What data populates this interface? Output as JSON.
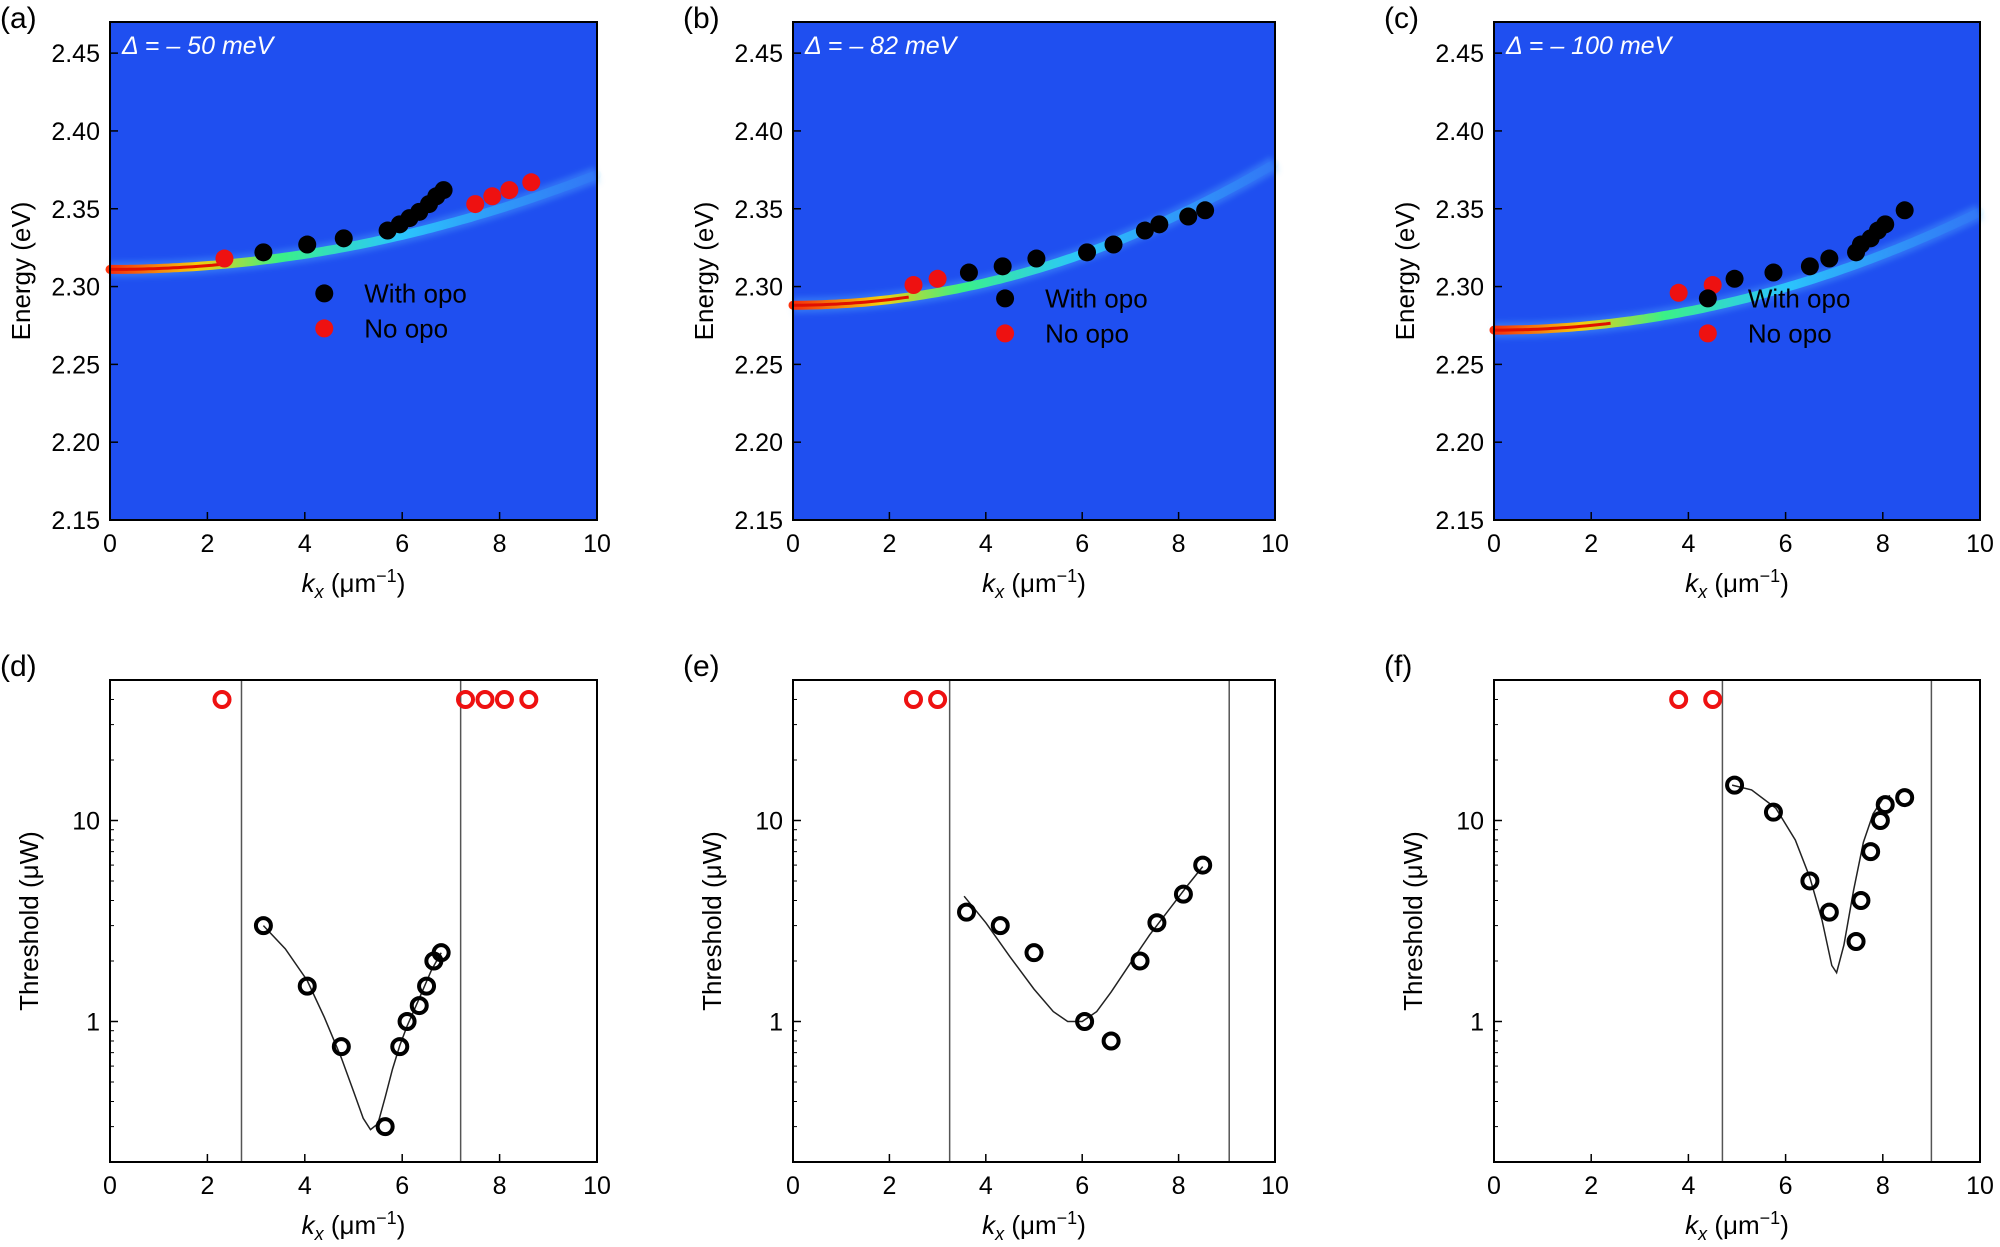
{
  "figure": {
    "top_row": {
      "xlabel_main": "k",
      "xlabel_sub": "x",
      "xlabel_unit": " (μm",
      "xlabel_sup": "−1",
      "xlabel_close": ")",
      "ylabel": "Energy (eV)",
      "xlim": [
        0,
        10
      ],
      "ylim": [
        2.15,
        2.47
      ],
      "xticks": [
        "0",
        "2",
        "4",
        "6",
        "8",
        "10"
      ],
      "yticks": [
        "2.15",
        "2.20",
        "2.25",
        "2.30",
        "2.35",
        "2.40",
        "2.45"
      ],
      "legend_with": "With opo",
      "legend_no": "No opo"
    },
    "bottom_row": {
      "ylabel": "Threshold (μW)",
      "yticks": [
        "1",
        "10"
      ],
      "ylim_log": [
        0.2,
        50
      ]
    },
    "colors": {
      "map_bg": "#1f4ff0",
      "with_opo": "#000000",
      "no_opo": "#ee1111"
    }
  },
  "chart_data": [
    {
      "type": "scatter",
      "panel": "(a)",
      "annotation": "Δ = – 50 meV",
      "xlim": [
        0,
        10
      ],
      "ylim": [
        2.15,
        2.47
      ],
      "dispersion": {
        "e0": 2.311,
        "curve": 0.00061
      },
      "series": [
        {
          "name": "With opo",
          "x": [
            3.15,
            4.05,
            4.8,
            5.7,
            5.95,
            6.15,
            6.35,
            6.55,
            6.7,
            6.85
          ],
          "y": [
            2.322,
            2.327,
            2.331,
            2.336,
            2.34,
            2.344,
            2.348,
            2.353,
            2.358,
            2.362
          ]
        },
        {
          "name": "No opo",
          "x": [
            2.35,
            7.5,
            7.85,
            8.2,
            8.65
          ],
          "y": [
            2.318,
            2.353,
            2.358,
            2.362,
            2.367
          ]
        }
      ]
    },
    {
      "type": "scatter",
      "panel": "(b)",
      "annotation": "Δ = – 82 meV",
      "xlim": [
        0,
        10
      ],
      "ylim": [
        2.15,
        2.47
      ],
      "dispersion": {
        "e0": 2.288,
        "curve": 0.00091
      },
      "series": [
        {
          "name": "With opo",
          "x": [
            3.65,
            4.35,
            5.05,
            6.1,
            6.65,
            7.3,
            7.6,
            8.2,
            8.55
          ],
          "y": [
            2.309,
            2.313,
            2.318,
            2.322,
            2.327,
            2.336,
            2.34,
            2.345,
            2.349
          ]
        },
        {
          "name": "No opo",
          "x": [
            2.5,
            3.0
          ],
          "y": [
            2.301,
            2.305
          ]
        }
      ]
    },
    {
      "type": "scatter",
      "panel": "(c)",
      "annotation": "Δ = – 100 meV",
      "xlim": [
        0,
        10
      ],
      "ylim": [
        2.15,
        2.47
      ],
      "dispersion": {
        "e0": 2.272,
        "curve": 0.00076
      },
      "series": [
        {
          "name": "With opo",
          "x": [
            4.95,
            5.75,
            6.5,
            6.9,
            7.45,
            7.55,
            7.75,
            7.9,
            8.05,
            8.45
          ],
          "y": [
            2.305,
            2.309,
            2.313,
            2.318,
            2.322,
            2.327,
            2.331,
            2.336,
            2.34,
            2.349
          ]
        },
        {
          "name": "No opo",
          "x": [
            3.8,
            4.5
          ],
          "y": [
            2.296,
            2.301
          ]
        }
      ]
    },
    {
      "type": "scatter",
      "panel": "(d)",
      "yscale": "log",
      "xlim": [
        0,
        10
      ],
      "ylim": [
        0.2,
        50
      ],
      "vlines": [
        2.7,
        7.2
      ],
      "series": [
        {
          "name": "With opo",
          "x": [
            3.15,
            4.05,
            4.75,
            5.65,
            5.95,
            6.1,
            6.35,
            6.5,
            6.65,
            6.8
          ],
          "y": [
            3.0,
            1.5,
            0.75,
            0.3,
            0.75,
            1.0,
            1.2,
            1.5,
            2.0,
            2.2
          ]
        },
        {
          "name": "No opo",
          "x": [
            2.3,
            7.3,
            7.7,
            8.1,
            8.6
          ],
          "y": [
            40,
            40,
            40,
            40,
            40
          ]
        }
      ],
      "fit": {
        "x": [
          3.15,
          3.6,
          4.05,
          4.4,
          4.75,
          5.0,
          5.2,
          5.35,
          5.5,
          5.65,
          5.8,
          5.95,
          6.1,
          6.35,
          6.6,
          6.8
        ],
        "y": [
          3.0,
          2.3,
          1.6,
          1.05,
          0.66,
          0.45,
          0.33,
          0.29,
          0.31,
          0.42,
          0.58,
          0.76,
          0.95,
          1.3,
          1.8,
          2.2
        ]
      }
    },
    {
      "type": "scatter",
      "panel": "(e)",
      "yscale": "log",
      "xlim": [
        0,
        10
      ],
      "ylim": [
        0.2,
        50
      ],
      "vlines": [
        3.25,
        9.05
      ],
      "series": [
        {
          "name": "With opo",
          "x": [
            3.6,
            4.3,
            5.0,
            6.05,
            6.6,
            7.2,
            7.55,
            8.1,
            8.5
          ],
          "y": [
            3.5,
            3.0,
            2.2,
            1.0,
            0.8,
            2.0,
            3.1,
            4.3,
            6.0
          ]
        },
        {
          "name": "No opo",
          "x": [
            2.5,
            3.0
          ],
          "y": [
            40,
            40
          ]
        }
      ],
      "fit": {
        "x": [
          3.55,
          4.0,
          4.5,
          5.0,
          5.4,
          5.7,
          6.0,
          6.3,
          6.6,
          7.0,
          7.4,
          7.8,
          8.2,
          8.5
        ],
        "y": [
          4.2,
          3.1,
          2.1,
          1.45,
          1.12,
          1.0,
          1.0,
          1.12,
          1.4,
          1.95,
          2.7,
          3.6,
          4.8,
          5.9
        ]
      }
    },
    {
      "type": "scatter",
      "panel": "(f)",
      "yscale": "log",
      "xlim": [
        0,
        10
      ],
      "ylim": [
        0.2,
        50
      ],
      "vlines": [
        4.7,
        9.0
      ],
      "series": [
        {
          "name": "With opo",
          "x": [
            4.95,
            5.75,
            6.5,
            6.9,
            7.45,
            7.55,
            7.75,
            7.95,
            8.05,
            8.45
          ],
          "y": [
            15,
            11,
            5.0,
            3.5,
            2.5,
            4.0,
            7.0,
            10,
            12,
            13
          ]
        },
        {
          "name": "No opo",
          "x": [
            3.8,
            4.5
          ],
          "y": [
            40,
            40
          ]
        }
      ],
      "fit": {
        "x": [
          4.9,
          5.3,
          5.8,
          6.2,
          6.5,
          6.75,
          6.95,
          7.05,
          7.2,
          7.4,
          7.6,
          7.8,
          8.0,
          8.15
        ],
        "y": [
          15,
          14.2,
          11.5,
          8.0,
          5.2,
          3.2,
          1.9,
          1.75,
          2.4,
          4.5,
          7.8,
          10.8,
          12.8,
          13.3
        ]
      }
    }
  ],
  "panel_labels": [
    "(a)",
    "(b)",
    "(c)",
    "(d)",
    "(e)",
    "(f)"
  ]
}
